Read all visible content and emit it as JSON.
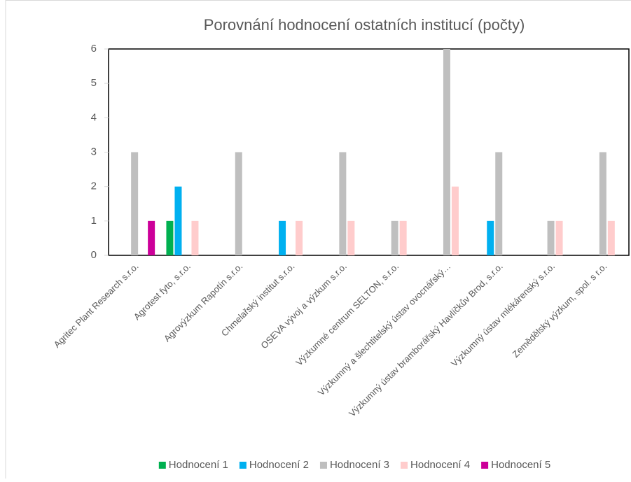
{
  "chart_data": {
    "type": "bar",
    "title": "Porovnání hodnocení ostatních institucí (počty)",
    "categories": [
      "Agritec Plant Research s.r.o.",
      "Agrotest fyto, s.r.o.",
      "Agrovýzkum Rapotín s.r.o.",
      "Chmelařský institut s.r.o.",
      "OSEVA vývoj a výzkum s.r.o.",
      "Výzkumné centrum SELTON, s.r.o.",
      "Výzkumný a šlechtitelský ústav ovocnářský…",
      "Výzkumný ústav bramborářský Havlíčkův Brod, s.r.o.",
      "Výzkumný ústav mlékárenský s.r.o.",
      "Zemědělský výzkum, spol. s r.o."
    ],
    "series": [
      {
        "name": "Hodnocení 1",
        "color": "#00b050",
        "values": [
          0,
          1,
          0,
          0,
          0,
          0,
          0,
          0,
          0,
          0
        ]
      },
      {
        "name": "Hodnocení 2",
        "color": "#00b0f0",
        "values": [
          0,
          2,
          0,
          1,
          0,
          0,
          0,
          1,
          0,
          0
        ]
      },
      {
        "name": "Hodnocení 3",
        "color": "#bfbfbf",
        "values": [
          3,
          0,
          3,
          0,
          3,
          1,
          6,
          3,
          1,
          3
        ]
      },
      {
        "name": "Hodnocení 4",
        "color": "#ffcccc",
        "values": [
          0,
          1,
          0,
          1,
          1,
          1,
          2,
          0,
          1,
          1
        ]
      },
      {
        "name": "Hodnocení 5",
        "color": "#cc0099",
        "values": [
          1,
          0,
          0,
          0,
          0,
          0,
          0,
          0,
          0,
          0
        ]
      }
    ],
    "ylim": [
      0,
      6
    ],
    "yticks": [
      0,
      1,
      2,
      3,
      4,
      5,
      6
    ],
    "grid": false,
    "legend": "bottom"
  }
}
